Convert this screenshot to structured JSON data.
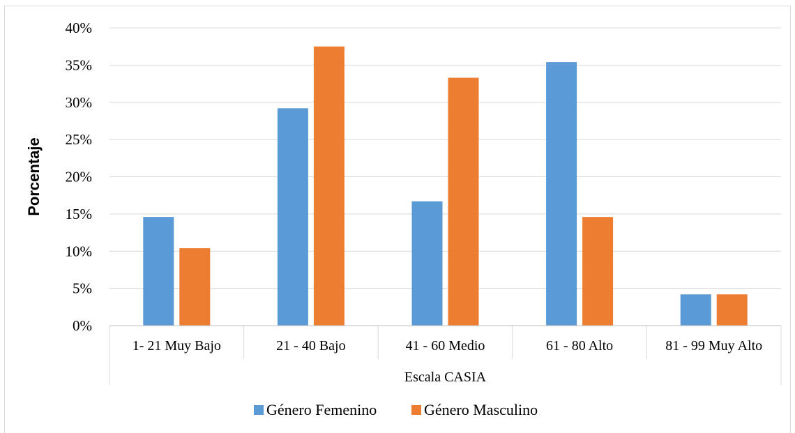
{
  "chart_data": {
    "type": "bar",
    "categories": [
      "1- 21 Muy Bajo",
      "21 - 40 Bajo",
      "41 - 60 Medio",
      "61 - 80 Alto",
      "81 - 99 Muy Alto"
    ],
    "series": [
      {
        "name": "Género Femenino",
        "color": "#5b9bd5",
        "values": [
          14.6,
          29.2,
          16.7,
          35.4,
          4.2
        ]
      },
      {
        "name": "Género Masculino",
        "color": "#ed7d31",
        "values": [
          10.4,
          37.5,
          33.3,
          14.6,
          4.2
        ]
      }
    ],
    "xlabel": "Escala CASIA",
    "ylabel": "Porcentaje",
    "ylim": [
      0,
      40
    ],
    "yticks": [
      0,
      5,
      10,
      15,
      20,
      25,
      30,
      35,
      40
    ],
    "ytick_suffix": "%",
    "grid": true,
    "legend_position": "bottom"
  }
}
